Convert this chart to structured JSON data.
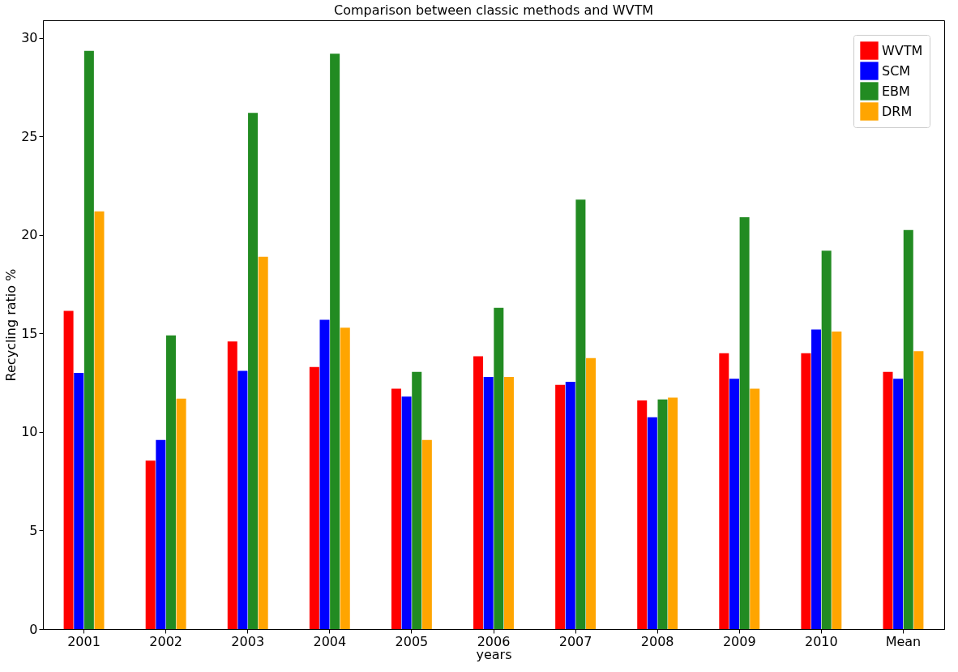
{
  "chart_data": {
    "type": "bar",
    "title": "Comparison between classic methods and WVTM",
    "xlabel": "years",
    "ylabel": "Recycling ratio %",
    "categories": [
      "2001",
      "2002",
      "2003",
      "2004",
      "2005",
      "2006",
      "2007",
      "2008",
      "2009",
      "2010",
      "Mean"
    ],
    "series": [
      {
        "name": "WVTM",
        "color": "#ff0000",
        "values": [
          16.15,
          8.55,
          14.6,
          13.3,
          12.2,
          13.85,
          12.4,
          11.6,
          14.0,
          14.0,
          13.05
        ]
      },
      {
        "name": "SCM",
        "color": "#0000ff",
        "values": [
          13.0,
          9.6,
          13.1,
          15.7,
          11.8,
          12.8,
          12.55,
          10.75,
          12.7,
          15.2,
          12.7
        ]
      },
      {
        "name": "EBM",
        "color": "#228b22",
        "values": [
          29.35,
          14.9,
          26.2,
          29.2,
          13.05,
          16.3,
          21.8,
          11.65,
          20.9,
          19.2,
          20.25
        ]
      },
      {
        "name": "DRM",
        "color": "#ffa500",
        "values": [
          21.2,
          11.7,
          18.9,
          15.3,
          9.6,
          12.8,
          13.75,
          11.75,
          12.2,
          15.1,
          14.1
        ]
      }
    ],
    "ylim": [
      0,
      30.9
    ],
    "yticks": [
      0,
      5,
      10,
      15,
      20,
      25,
      30
    ],
    "grid": false,
    "legend": "top right"
  }
}
